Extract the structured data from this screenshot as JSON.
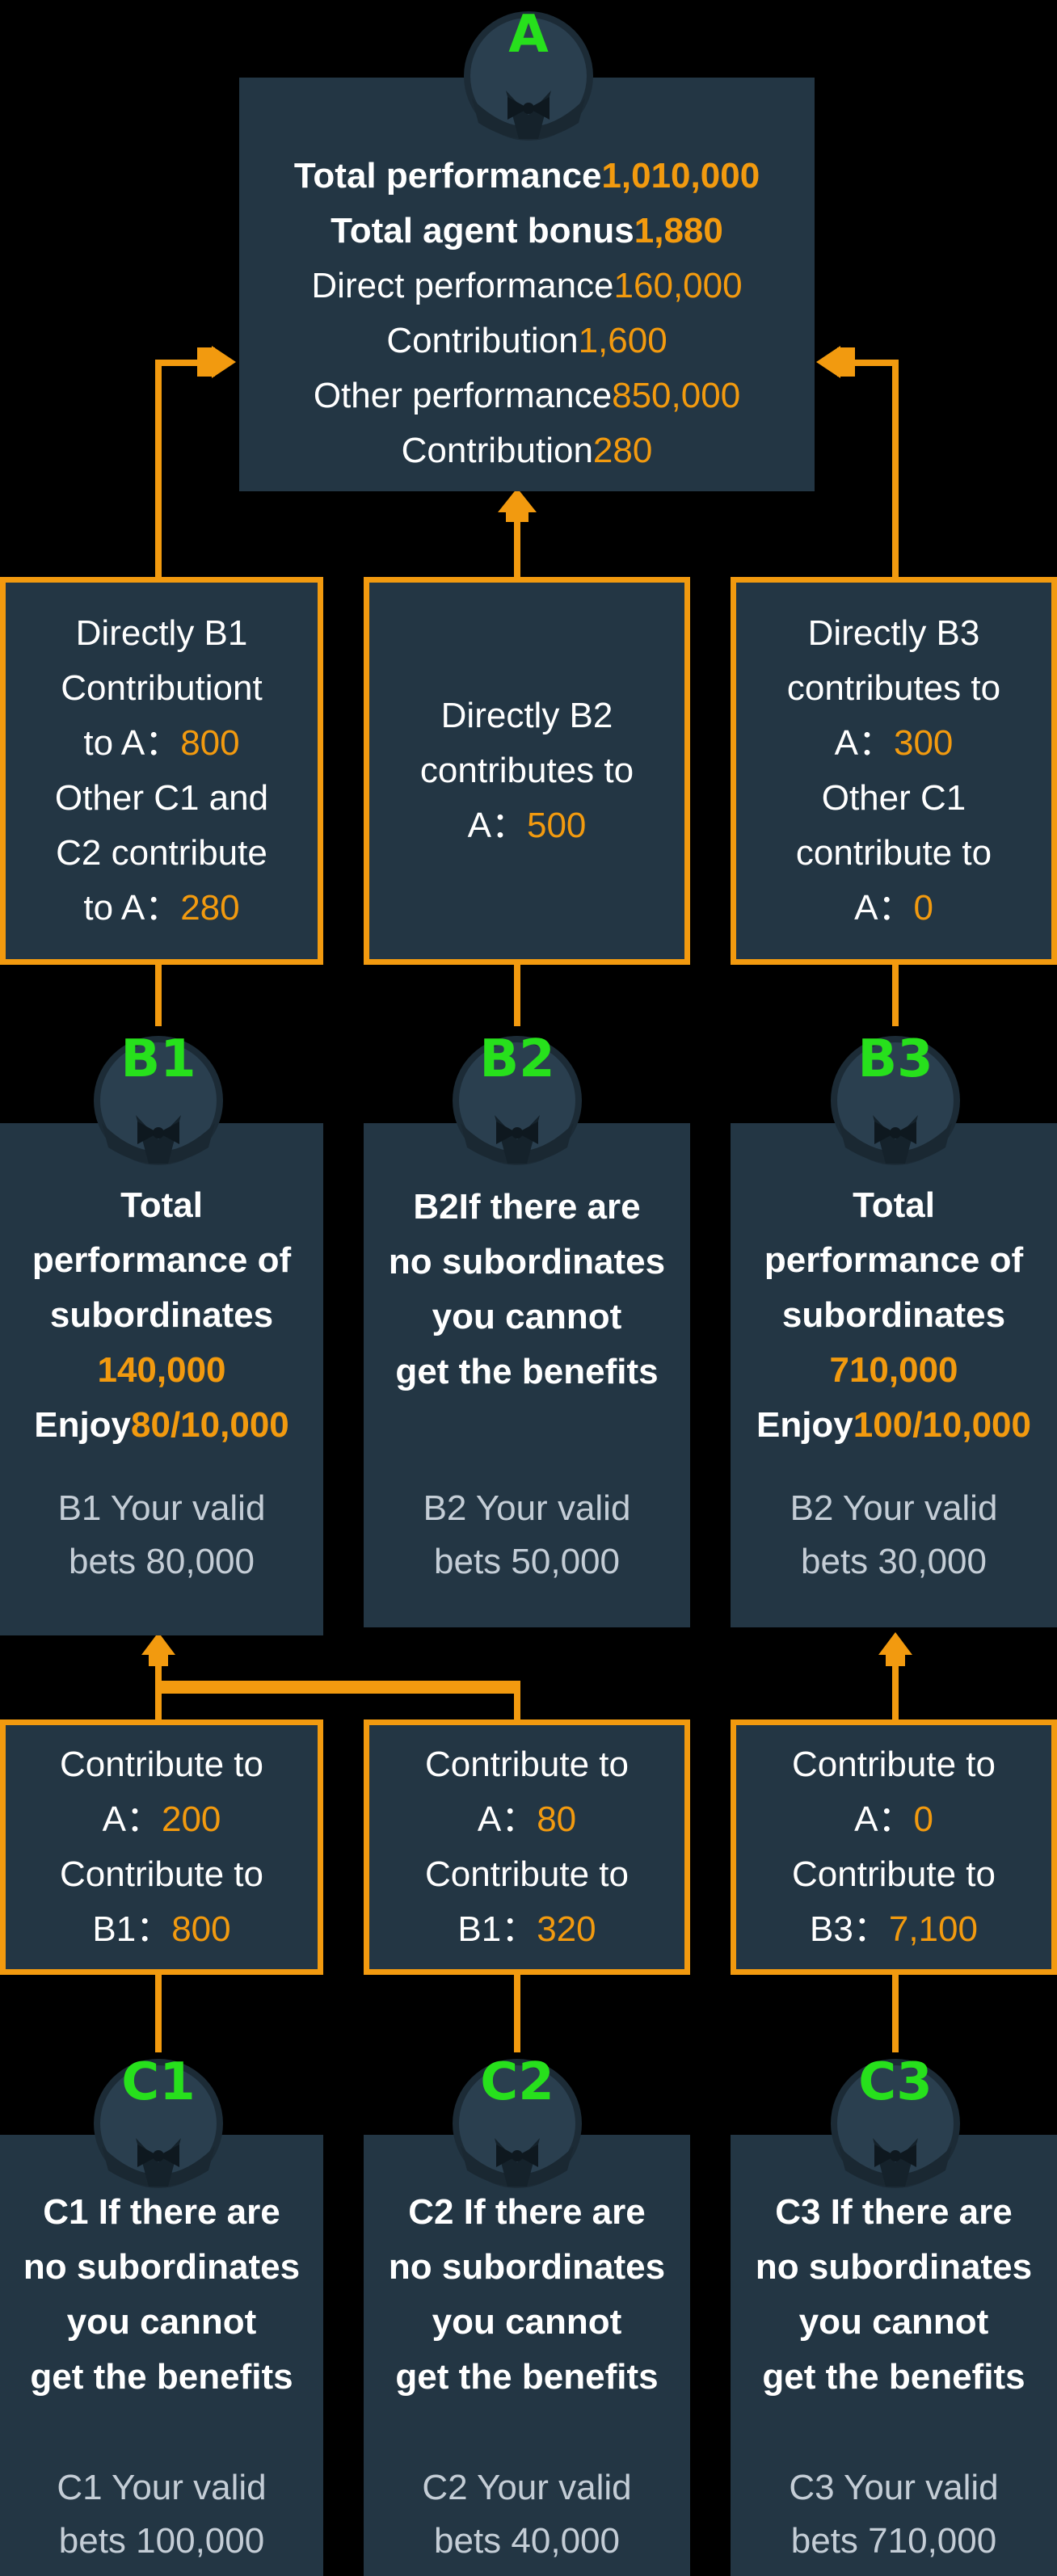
{
  "top": {
    "avatar": "A",
    "total_performance_label": "Total performance",
    "total_performance_value": "1,010,000",
    "total_bonus_label": "Total agent bonus",
    "total_bonus_value": "1,880",
    "direct_perf_label": "Direct performance",
    "direct_perf_value": "160,000",
    "contribution1_label": "Contribution",
    "contribution1_value": "1,600",
    "other_perf_label": "Other performance",
    "other_perf_value": "850,000",
    "contribution2_label": "Contribution",
    "contribution2_value": "280"
  },
  "contrib_b": [
    {
      "lines_a": [
        "Directly B1",
        "Contributiont",
        "to A："
      ],
      "value_a": "800",
      "lines_b": [
        "Other C1 and",
        "C2 contribute",
        "to A："
      ],
      "value_b": "280"
    },
    {
      "lines_a": [
        "Directly B2",
        "contributes to",
        "A："
      ],
      "value_a": "500"
    },
    {
      "lines_a": [
        "Directly B3",
        "contributes to",
        "A："
      ],
      "value_a": "300",
      "lines_b": [
        "Other C1",
        "contribute to",
        "A："
      ],
      "value_b": "0"
    }
  ],
  "b_nodes": [
    {
      "avatar": "B1",
      "l1": "Total",
      "l2": "performance of",
      "l3": "subordinates",
      "value": "140,000",
      "enjoy_label": "Enjoy",
      "enjoy_value": "80/10,000",
      "bets_l1": "B1 Your valid",
      "bets_l2": "bets 80,000"
    },
    {
      "avatar": "B2",
      "n1": "B2If there are",
      "n2": "no subordinates",
      "n3": "you cannot",
      "n4": "get the benefits",
      "bets_l1": "B2 Your valid",
      "bets_l2": "bets 50,000"
    },
    {
      "avatar": "B3",
      "l1": "Total",
      "l2": "performance of",
      "l3": "subordinates",
      "value": "710,000",
      "enjoy_label": "Enjoy",
      "enjoy_value": "100/10,000",
      "bets_l1": "B2 Your valid",
      "bets_l2": "bets 30,000"
    }
  ],
  "contrib_c": [
    {
      "l1": "Contribute to",
      "l2": "A：",
      "v1": "200",
      "l3": "Contribute to",
      "l4": "B1：",
      "v2": "800"
    },
    {
      "l1": "Contribute to",
      "l2": "A：",
      "v1": "80",
      "l3": "Contribute to",
      "l4": "B1：",
      "v2": "320"
    },
    {
      "l1": "Contribute to",
      "l2": "A：",
      "v1": "0",
      "l3": "Contribute to",
      "l4": "B3：",
      "v2": "7,100"
    }
  ],
  "c_nodes": [
    {
      "avatar": "C1",
      "n1": "C1 If there are",
      "n2": "no subordinates",
      "n3": "you cannot",
      "n4": "get the benefits",
      "bets_l1": "C1 Your valid",
      "bets_l2": "bets 100,000"
    },
    {
      "avatar": "C2",
      "n1": "C2 If there are",
      "n2": "no subordinates",
      "n3": "you cannot",
      "n4": "get the benefits",
      "bets_l1": "C2 Your valid",
      "bets_l2": "bets 40,000"
    },
    {
      "avatar": "C3",
      "n1": "C3 If there are",
      "n2": "no subordinates",
      "n3": "you cannot",
      "n4": "get the benefits",
      "bets_l1": "C3 Your valid",
      "bets_l2": "bets 710,000"
    }
  ],
  "colors": {
    "accent": "#f29a0f",
    "box": "#233644",
    "label_green": "#27e01c",
    "bets_text": "#c4cdd6"
  }
}
